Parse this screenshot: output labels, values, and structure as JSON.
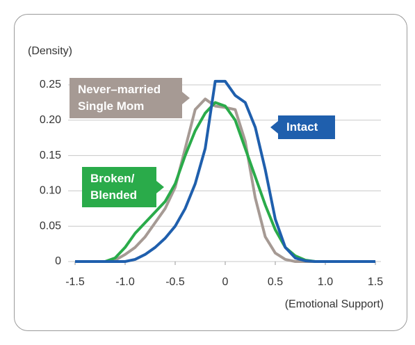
{
  "chart_data": {
    "type": "line",
    "y_label": "(Density)",
    "x_label": "(Emotional Support)",
    "x": [
      -1.5,
      -1.4,
      -1.3,
      -1.2,
      -1.1,
      -1.0,
      -0.9,
      -0.8,
      -0.7,
      -0.6,
      -0.5,
      -0.4,
      -0.3,
      -0.2,
      -0.1,
      0,
      0.1,
      0.2,
      0.3,
      0.4,
      0.5,
      0.6,
      0.7,
      0.8,
      0.9,
      1.0,
      1.1,
      1.2,
      1.3,
      1.4,
      1.5
    ],
    "series": [
      {
        "name": "Never–married Single Mom",
        "color": "#a69a94",
        "values": [
          0,
          0,
          0,
          0,
          0.002,
          0.01,
          0.02,
          0.035,
          0.055,
          0.075,
          0.105,
          0.16,
          0.215,
          0.23,
          0.22,
          0.218,
          0.215,
          0.17,
          0.09,
          0.035,
          0.012,
          0.003,
          0,
          0,
          0,
          0,
          0,
          0,
          0,
          0,
          0
        ]
      },
      {
        "name": "Broken/ Blended",
        "color": "#2aab4a",
        "values": [
          0,
          0,
          0,
          0,
          0.005,
          0.02,
          0.04,
          0.055,
          0.07,
          0.085,
          0.11,
          0.15,
          0.185,
          0.21,
          0.225,
          0.22,
          0.2,
          0.16,
          0.12,
          0.08,
          0.045,
          0.02,
          0.008,
          0.002,
          0,
          0,
          0,
          0,
          0,
          0,
          0
        ]
      },
      {
        "name": "Intact",
        "color": "#1f5fad",
        "values": [
          0,
          0,
          0,
          0,
          0,
          0,
          0.003,
          0.01,
          0.02,
          0.033,
          0.05,
          0.075,
          0.11,
          0.16,
          0.255,
          0.255,
          0.235,
          0.225,
          0.19,
          0.13,
          0.06,
          0.02,
          0.005,
          0.001,
          0,
          0,
          0,
          0,
          0,
          0,
          0
        ]
      }
    ],
    "xlim": [
      -1.5,
      1.5
    ],
    "ylim": [
      0,
      0.25
    ],
    "xticks": [
      -1.5,
      {
        "value": -1,
        "label": "-1.0"
      },
      -0.5,
      0,
      0.5,
      {
        "value": 1,
        "label": "1.0"
      },
      1.5
    ],
    "yticks": [
      0,
      0.05,
      {
        "value": 0.1,
        "label": "0.10"
      },
      0.15,
      {
        "value": 0.2,
        "label": "0.20"
      },
      0.25
    ],
    "grid": true
  }
}
